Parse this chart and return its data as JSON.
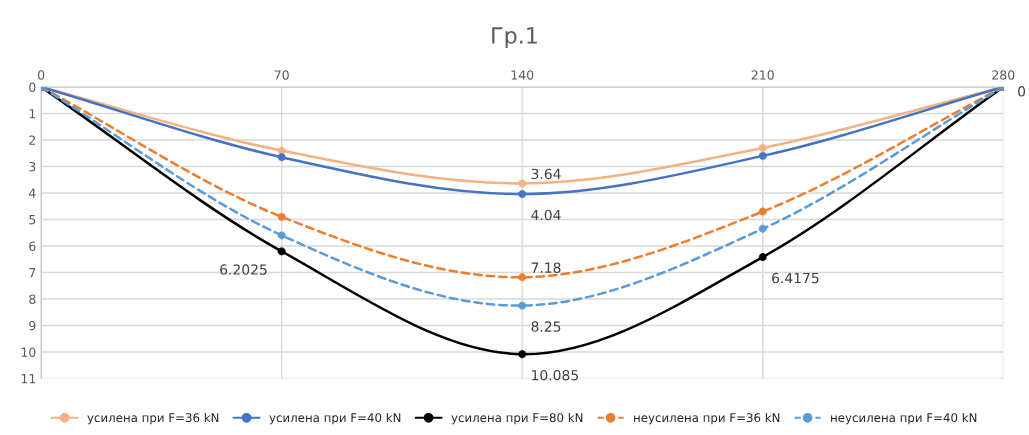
{
  "chart_data": {
    "type": "line",
    "title": "Гр.1",
    "x": [
      0,
      70,
      140,
      210,
      280
    ],
    "xlim": [
      0,
      280
    ],
    "xticks": [
      0,
      70,
      140,
      210,
      280
    ],
    "ylim": [
      11,
      0
    ],
    "yticks": [
      0,
      1,
      2,
      3,
      4,
      5,
      6,
      7,
      8,
      9,
      10,
      11
    ],
    "grid": true,
    "legend": "bottom",
    "marker": "circle",
    "series": [
      {
        "name": "усилена при F=36 kN",
        "color": "#f4b183",
        "line_style": "solid",
        "values": [
          0,
          2.4,
          3.64,
          2.3,
          0
        ]
      },
      {
        "name": "усилена при F=40 kN",
        "color": "#4472c4",
        "line_style": "solid",
        "values": [
          0,
          2.65,
          4.04,
          2.6,
          0
        ]
      },
      {
        "name": "усилена при F=80 kN",
        "color": "#000000",
        "line_style": "solid",
        "values": [
          0,
          6.2025,
          10.085,
          6.4175,
          0
        ]
      },
      {
        "name": "неусилена при F=36 kN",
        "color": "#ed7d31",
        "line_style": "dashed",
        "values": [
          0,
          4.9,
          7.18,
          4.7,
          0
        ]
      },
      {
        "name": "неусилена при F=40 kN",
        "color": "#5b9bd5",
        "line_style": "dashed",
        "values": [
          0,
          5.6,
          8.25,
          5.35,
          0
        ]
      }
    ],
    "annotations": [
      {
        "text": "6.2025",
        "x": 70,
        "y": 6.2025
      },
      {
        "text": "3.64",
        "x": 140,
        "y": 3.64
      },
      {
        "text": "4.04",
        "x": 140,
        "y": 4.04
      },
      {
        "text": "7.18",
        "x": 140,
        "y": 7.18
      },
      {
        "text": "8.25",
        "x": 140,
        "y": 8.25
      },
      {
        "text": "10.085",
        "x": 140,
        "y": 10.085
      },
      {
        "text": "6.4175",
        "x": 210,
        "y": 6.4175
      },
      {
        "text": "0",
        "x": 280,
        "y": 0
      }
    ]
  }
}
